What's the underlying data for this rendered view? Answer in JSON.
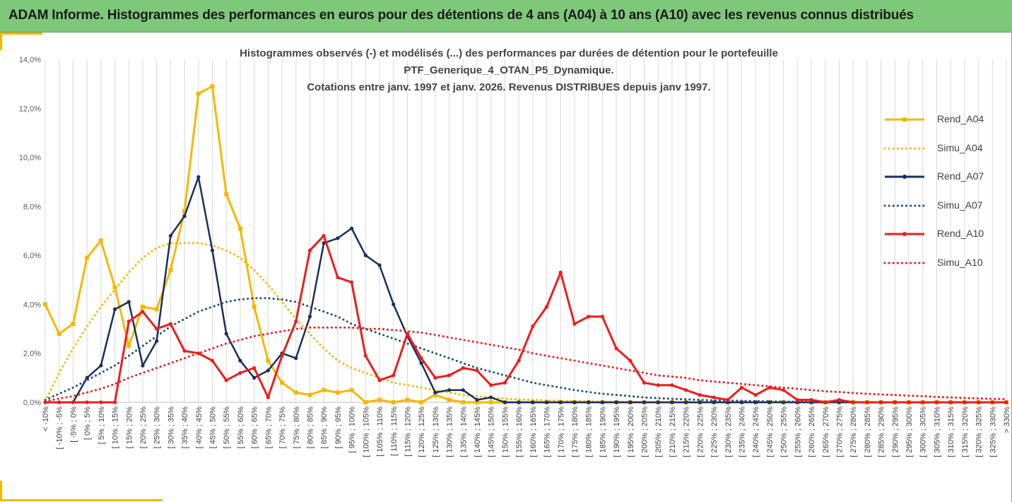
{
  "banner": {
    "title": "ADAM Informe. Histogrammes des performances en euros pour des détentions de 4 ans (A04) à 10 ans (A10) avec les revenus connus distribués",
    "color": "#7ec87a"
  },
  "chart_data": {
    "type": "line",
    "title_lines": [
      "Histogrammes observés (-) et modélisés (...) des performances par durées de détention pour le portefeuille",
      "PTF_Generique_4_OTAN_P5_Dynamique.",
      "Cotations entre janv. 1997 et janv. 2026. Revenus DISTRIBUES depuis janv 1997."
    ],
    "xlabel": "",
    "ylabel": "",
    "ylim": [
      0,
      14
    ],
    "y_tick_values": [
      0,
      2,
      4,
      6,
      8,
      10,
      12,
      14
    ],
    "y_tick_labels": [
      "0,0%",
      "2,0%",
      "4,0%",
      "6,0%",
      "8,0%",
      "10,0%",
      "12,0%",
      "14,0%"
    ],
    "grid": "vertical",
    "legend_position": "right",
    "categories": [
      "< -10%",
      "[ -10% ; -5%",
      "[ -5% ; 0%",
      "[ 0% ; 5%",
      "[ 5% ; 10%",
      "[ 10% ; 15%",
      "[ 15% ; 20%",
      "[ 20% ; 25%",
      "[ 25% ; 30%",
      "[ 30% ; 35%",
      "[ 35% ; 40%",
      "[ 40% ; 45%",
      "[ 45% ; 50%",
      "[ 50% ; 55%",
      "[ 55% ; 60%",
      "[ 60% ; 65%",
      "[ 65% ; 70%",
      "[ 70% ; 75%",
      "[ 75% ; 80%",
      "[ 80% ; 85%",
      "[ 85% ; 90%",
      "[ 90% ; 95%",
      "[ 95% ; 100%",
      "[ 100% ; 105%",
      "[ 105% ; 110%",
      "[ 110% ; 115%",
      "[ 115% ; 120%",
      "[ 120% ; 125%",
      "[ 125% ; 130%",
      "[ 130% ; 135%",
      "[ 135% ; 140%",
      "[ 140% ; 145%",
      "[ 145% ; 150%",
      "[ 150% ; 155%",
      "[ 155% ; 160%",
      "[ 160% ; 165%",
      "[ 165% ; 170%",
      "[ 170% ; 175%",
      "[ 175% ; 180%",
      "[ 180% ; 185%",
      "[ 185% ; 190%",
      "[ 190% ; 195%",
      "[ 195% ; 200%",
      "[ 200% ; 205%",
      "[ 205% ; 210%",
      "[ 210% ; 215%",
      "[ 215% ; 220%",
      "[ 220% ; 225%",
      "[ 225% ; 230%",
      "[ 230% ; 235%",
      "[ 235% ; 240%",
      "[ 240% ; 245%",
      "[ 245% ; 250%",
      "[ 250% ; 255%",
      "[ 255% ; 260%",
      "[ 260% ; 265%",
      "[ 265% ; 270%",
      "[ 270% ; 275%",
      "[ 275% ; 280%",
      "[ 280% ; 285%",
      "[ 285% ; 290%",
      "[ 290% ; 295%",
      "[ 295% ; 300%",
      "[ 300% ; 305%",
      "[ 305% ; 310%",
      "[ 310% ; 315%",
      "[ 315% ; 320%",
      "[ 320% ; 325%",
      "[ 325% ; 330%",
      "> 330%"
    ],
    "series": [
      {
        "name": "Rend_A04",
        "color": "#f5b800",
        "style": "solid",
        "marker": "square",
        "values": [
          4.0,
          2.8,
          3.2,
          5.9,
          6.6,
          4.7,
          2.3,
          3.9,
          3.8,
          5.4,
          7.8,
          12.6,
          12.9,
          8.5,
          7.1,
          3.9,
          1.7,
          0.8,
          0.4,
          0.3,
          0.5,
          0.4,
          0.5,
          0.0,
          0.1,
          0.0,
          0.1,
          0.0,
          0.3,
          0.1,
          0.0,
          0.0,
          0.0,
          0.0,
          0.0,
          0.0,
          0.0,
          0.0,
          0.0,
          0.0,
          0.0,
          0.0,
          0.0,
          0.0,
          0.0,
          0.0,
          0.0,
          0.0,
          0.0,
          0.0,
          0.0,
          0.0,
          0.0,
          0.0,
          0.0,
          0.0,
          0.0,
          0.0,
          0.0,
          0.0,
          0.0,
          0.0,
          0.0,
          0.0,
          0.0,
          0.0,
          0.0,
          0.0,
          0.0,
          0.0
        ]
      },
      {
        "name": "Simu_A04",
        "color": "#f5b800",
        "style": "dotted",
        "marker": "none",
        "values": [
          0.05,
          1.2,
          2.2,
          3.1,
          3.9,
          4.6,
          5.3,
          5.9,
          6.3,
          6.5,
          6.5,
          6.5,
          6.4,
          6.2,
          5.9,
          5.4,
          4.8,
          4.1,
          3.4,
          2.8,
          2.2,
          1.7,
          1.4,
          1.2,
          1.0,
          0.8,
          0.7,
          0.6,
          0.5,
          0.4,
          0.3,
          0.25,
          0.2,
          0.15,
          0.12,
          0.1,
          0.08,
          0.06,
          0.05,
          0.04,
          0.03,
          0.02,
          0.02,
          0.01,
          0.01,
          0.0,
          0.0,
          0.0,
          0.0,
          0.0,
          0.0,
          0.0,
          0.0,
          0.0,
          0.0,
          0.0,
          0.0,
          0.0,
          0.0,
          0.0,
          0.0,
          0.0,
          0.0,
          0.0,
          0.0,
          0.0,
          0.0,
          0.0,
          0.0,
          0.0
        ]
      },
      {
        "name": "Rend_A07",
        "color": "#1a2f5c",
        "style": "solid",
        "marker": "circle",
        "values": [
          0.0,
          0.0,
          0.0,
          1.0,
          1.5,
          3.8,
          4.1,
          1.5,
          2.5,
          6.8,
          7.6,
          9.2,
          6.2,
          2.8,
          1.7,
          1.0,
          1.3,
          2.0,
          1.8,
          3.5,
          6.5,
          6.7,
          7.1,
          6.0,
          5.6,
          4.0,
          2.7,
          1.6,
          0.4,
          0.5,
          0.5,
          0.1,
          0.2,
          0.0,
          0.0,
          0.0,
          0.0,
          0.0,
          0.0,
          0.0,
          0.0,
          0.0,
          0.0,
          0.0,
          0.0,
          0.0,
          0.0,
          0.0,
          0.0,
          0.0,
          0.0,
          0.0,
          0.0,
          0.0,
          0.0,
          0.0,
          0.0,
          0.0,
          0.0,
          0.0,
          0.0,
          0.0,
          0.0,
          0.0,
          0.0,
          0.0,
          0.0,
          0.0,
          0.0,
          0.0
        ]
      },
      {
        "name": "Simu_A07",
        "color": "#1f4e79",
        "style": "dotted",
        "marker": "none",
        "values": [
          0.1,
          0.35,
          0.6,
          0.9,
          1.2,
          1.5,
          1.9,
          2.3,
          2.7,
          3.1,
          3.4,
          3.7,
          3.9,
          4.1,
          4.2,
          4.25,
          4.25,
          4.2,
          4.1,
          3.9,
          3.7,
          3.5,
          3.2,
          3.0,
          2.8,
          2.6,
          2.4,
          2.2,
          2.0,
          1.8,
          1.6,
          1.4,
          1.25,
          1.1,
          0.95,
          0.8,
          0.7,
          0.6,
          0.5,
          0.42,
          0.35,
          0.3,
          0.25,
          0.2,
          0.17,
          0.14,
          0.12,
          0.1,
          0.08,
          0.07,
          0.06,
          0.05,
          0.04,
          0.03,
          0.03,
          0.02,
          0.02,
          0.01,
          0.01,
          0.01,
          0.0,
          0.0,
          0.0,
          0.0,
          0.0,
          0.0,
          0.0,
          0.0,
          0.0,
          0.0
        ]
      },
      {
        "name": "Rend_A10",
        "color": "#ee1c1c",
        "style": "solid",
        "marker": "circle",
        "values": [
          0.0,
          0.0,
          0.0,
          0.0,
          0.0,
          0.0,
          3.3,
          3.7,
          3.0,
          3.2,
          2.1,
          2.0,
          1.7,
          0.9,
          1.2,
          1.4,
          0.2,
          1.9,
          3.3,
          6.2,
          6.8,
          5.1,
          4.9,
          1.9,
          0.9,
          1.1,
          2.8,
          1.8,
          1.0,
          1.1,
          1.4,
          1.3,
          0.7,
          0.8,
          1.7,
          3.1,
          3.9,
          5.3,
          3.2,
          3.5,
          3.5,
          2.2,
          1.7,
          0.8,
          0.7,
          0.7,
          0.5,
          0.3,
          0.2,
          0.1,
          0.6,
          0.3,
          0.6,
          0.5,
          0.1,
          0.1,
          0.0,
          0.1,
          0.0,
          0.0,
          0.0,
          0.0,
          0.0,
          0.0,
          0.0,
          0.0,
          0.0,
          0.0,
          0.0,
          0.0
        ]
      },
      {
        "name": "Simu_A10",
        "color": "#ee1c1c",
        "style": "dotted",
        "marker": "none",
        "values": [
          0.05,
          0.15,
          0.25,
          0.4,
          0.55,
          0.75,
          1.0,
          1.2,
          1.4,
          1.6,
          1.8,
          2.0,
          2.2,
          2.4,
          2.55,
          2.7,
          2.8,
          2.9,
          3.0,
          3.05,
          3.05,
          3.05,
          3.05,
          3.0,
          3.0,
          2.95,
          2.9,
          2.85,
          2.75,
          2.65,
          2.55,
          2.45,
          2.35,
          2.25,
          2.15,
          2.0,
          1.9,
          1.8,
          1.7,
          1.6,
          1.5,
          1.4,
          1.3,
          1.2,
          1.1,
          1.05,
          1.0,
          0.9,
          0.85,
          0.8,
          0.75,
          0.7,
          0.65,
          0.6,
          0.55,
          0.5,
          0.45,
          0.42,
          0.38,
          0.35,
          0.32,
          0.3,
          0.27,
          0.25,
          0.22,
          0.2,
          0.18,
          0.16,
          0.14,
          0.13
        ]
      }
    ]
  }
}
